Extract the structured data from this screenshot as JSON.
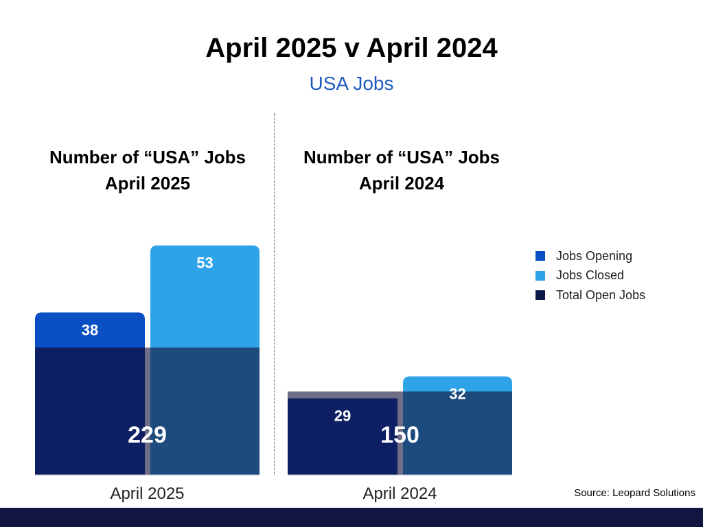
{
  "title": "April 2025 v April 2024",
  "subtitle": "USA Jobs",
  "source": "Source: Leopard Solutions",
  "legend": [
    {
      "label": "Jobs Opening",
      "color": "#0a50c4"
    },
    {
      "label": "Jobs Closed",
      "color": "#2ea3e8"
    },
    {
      "label": "Total Open Jobs",
      "color": "#0e1848"
    }
  ],
  "chart_data": {
    "type": "bar",
    "series_names": [
      "Jobs Opening",
      "Jobs Closed",
      "Total Open Jobs"
    ],
    "colors": {
      "opening": "#0a50c4",
      "closed": "#2ea3e8",
      "total": "#0e1848",
      "total_overlay": "#0e1f63",
      "closed_overlay": "#1d4b7d",
      "overlap": "#6e6e86",
      "baseline": "#aab0c0"
    },
    "panels": [
      {
        "title_line1": "Number of “USA” Jobs",
        "title_line2": "April 2025",
        "category": "April 2025",
        "opening": 38,
        "closed": 53,
        "total": 229
      },
      {
        "title_line1": "Number of “USA” Jobs",
        "title_line2": "April 2024",
        "category": "April 2024",
        "opening": 29,
        "closed": 32,
        "total": 150
      }
    ]
  }
}
